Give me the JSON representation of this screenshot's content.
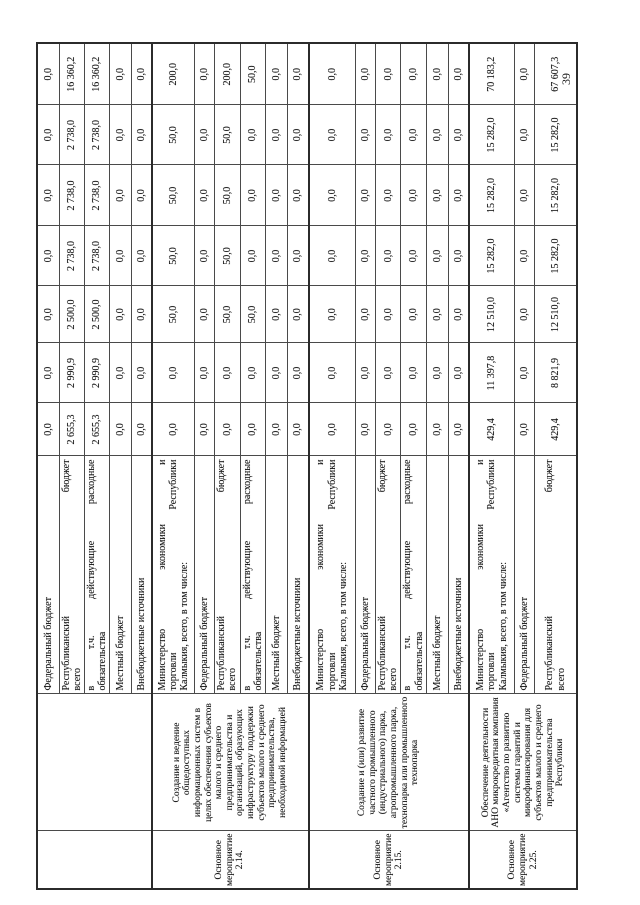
{
  "page": {
    "number": "39"
  },
  "table": {
    "num_value_columns": 7,
    "groups": [
      {
        "activity": "",
        "description": "",
        "rows": [
          {
            "label": "Федеральный бюджет",
            "values": [
              "0,0",
              "0,0",
              "0,0",
              "0,0",
              "0,0",
              "0,0",
              "0,0"
            ]
          },
          {
            "label": "Республиканский бюджет\nвсего",
            "values": [
              "2 655,3",
              "2 990,9",
              "2 500,0",
              "2 738,0",
              "2 738,0",
              "2 738,0",
              "16 360,2"
            ]
          },
          {
            "label": "в т.ч. действующие расходные\nобязательства",
            "values": [
              "2 655,3",
              "2 990,9",
              "2 500,0",
              "2 738,0",
              "2 738,0",
              "2 738,0",
              "16 360,2"
            ]
          },
          {
            "label": "Местный бюджет",
            "values": [
              "0,0",
              "0,0",
              "0,0",
              "0,0",
              "0,0",
              "0,0",
              "0,0"
            ]
          },
          {
            "label": "Внебюджетные источники",
            "values": [
              "0,0",
              "0,0",
              "0,0",
              "0,0",
              "0,0",
              "0,0",
              "0,0"
            ]
          }
        ]
      },
      {
        "activity": "Основное мероприятие 2.14.",
        "description": "Создание и ведение общедоступных информационных систем в целях обеспечения субъектов малого и среднего предпринимательства и организаций, образующих инфраструктуру поддержки субъектов малого и среднего предпринимательства, необходимой информацией",
        "rows": [
          {
            "label": "Министерство экономики и\nторговли Республики\nКалмыкия, всего, в том числе:",
            "values": [
              "0,0",
              "0,0",
              "50,0",
              "50,0",
              "50,0",
              "50,0",
              "200,0"
            ]
          },
          {
            "label": "Федеральный бюджет",
            "values": [
              "0,0",
              "0,0",
              "0,0",
              "0,0",
              "0,0",
              "0,0",
              "0,0"
            ]
          },
          {
            "label": "Республиканский бюджет\nвсего",
            "values": [
              "0,0",
              "0,0",
              "50,0",
              "50,0",
              "50,0",
              "50,0",
              "200,0"
            ]
          },
          {
            "label": "в т.ч. действующие расходные\nобязательства",
            "values": [
              "0,0",
              "0,0",
              "50,0",
              "0,0",
              "0,0",
              "0,0",
              "50,0"
            ]
          },
          {
            "label": "Местный бюджет",
            "values": [
              "0,0",
              "0,0",
              "0,0",
              "0,0",
              "0,0",
              "0,0",
              "0,0"
            ]
          },
          {
            "label": "Внебюджетные источники",
            "values": [
              "0,0",
              "0,0",
              "0,0",
              "0,0",
              "0,0",
              "0,0",
              "0,0"
            ]
          }
        ]
      },
      {
        "activity": "Основное мероприятие 2.15.",
        "description": "Создание и (или) развитие частного промышленного (индустриального) парка, агропромышленного парка, технопарка или промышленного технопарка",
        "rows": [
          {
            "label": "Министерство экономики и\nторговли Республики\nКалмыкия, всего, в том числе:",
            "values": [
              "0,0",
              "0,0",
              "0,0",
              "0,0",
              "0,0",
              "0,0",
              "0,0"
            ]
          },
          {
            "label": "Федеральный бюджет",
            "values": [
              "0,0",
              "0,0",
              "0,0",
              "0,0",
              "0,0",
              "0,0",
              "0,0"
            ]
          },
          {
            "label": "Республиканский бюджет\nвсего",
            "values": [
              "0,0",
              "0,0",
              "0,0",
              "0,0",
              "0,0",
              "0,0",
              "0,0"
            ]
          },
          {
            "label": "в т.ч. действующие расходные\nобязательства",
            "values": [
              "0,0",
              "0,0",
              "0,0",
              "0,0",
              "0,0",
              "0,0",
              "0,0"
            ]
          },
          {
            "label": "Местный бюджет",
            "values": [
              "0,0",
              "0,0",
              "0,0",
              "0,0",
              "0,0",
              "0,0",
              "0,0"
            ]
          },
          {
            "label": "Внебюджетные источники",
            "values": [
              "0,0",
              "0,0",
              "0,0",
              "0,0",
              "0,0",
              "0,0",
              "0,0"
            ]
          }
        ]
      },
      {
        "activity": "Основное мероприятие 2.25.",
        "description": "Обеспечение деятельности АНО микрокредитная компания «Агентство по развитию системы гарантий и микрофинансирования для субъектов малого и среднего предпринимательства Республики",
        "rows": [
          {
            "label": "Министерство экономики и\nторговли Республики\nКалмыкия, всего, в том числе:",
            "values": [
              "429,4",
              "11 397,8",
              "12 510,0",
              "15 282,0",
              "15 282,0",
              "15 282,0",
              "70 183,2"
            ]
          },
          {
            "label": "Федеральный бюджет",
            "values": [
              "0,0",
              "0,0",
              "0,0",
              "0,0",
              "0,0",
              "0,0",
              "0,0"
            ]
          },
          {
            "label": "Республиканский бюджет\nвсего",
            "values": [
              "429,4",
              "8 821,9",
              "12 510,0",
              "15 282,0",
              "15 282,0",
              "15 282,0",
              "67 607,3"
            ]
          }
        ]
      }
    ]
  }
}
